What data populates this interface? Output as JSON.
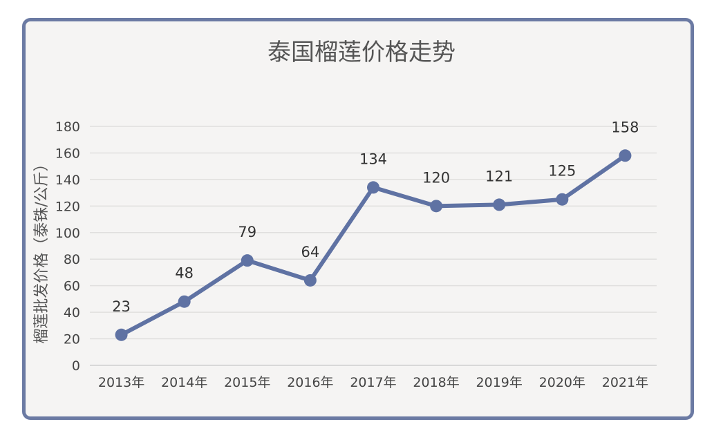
{
  "chart_data": {
    "type": "line",
    "title": "泰国榴莲价格走势",
    "ylabel": "榴莲批发价格（泰铢/公斤）",
    "xlabel": "",
    "categories": [
      "2013年",
      "2014年",
      "2015年",
      "2016年",
      "2017年",
      "2018年",
      "2019年",
      "2020年",
      "2021年"
    ],
    "series": [
      {
        "values": [
          23,
          48,
          79,
          64,
          134,
          120,
          121,
          125,
          158
        ]
      }
    ],
    "ylim": [
      0,
      180
    ],
    "yticks": [
      0,
      20,
      40,
      60,
      80,
      100,
      120,
      140,
      160,
      180
    ],
    "grid": true,
    "line_color": "#5f72a3",
    "frame_color": "#6b7aa3"
  }
}
